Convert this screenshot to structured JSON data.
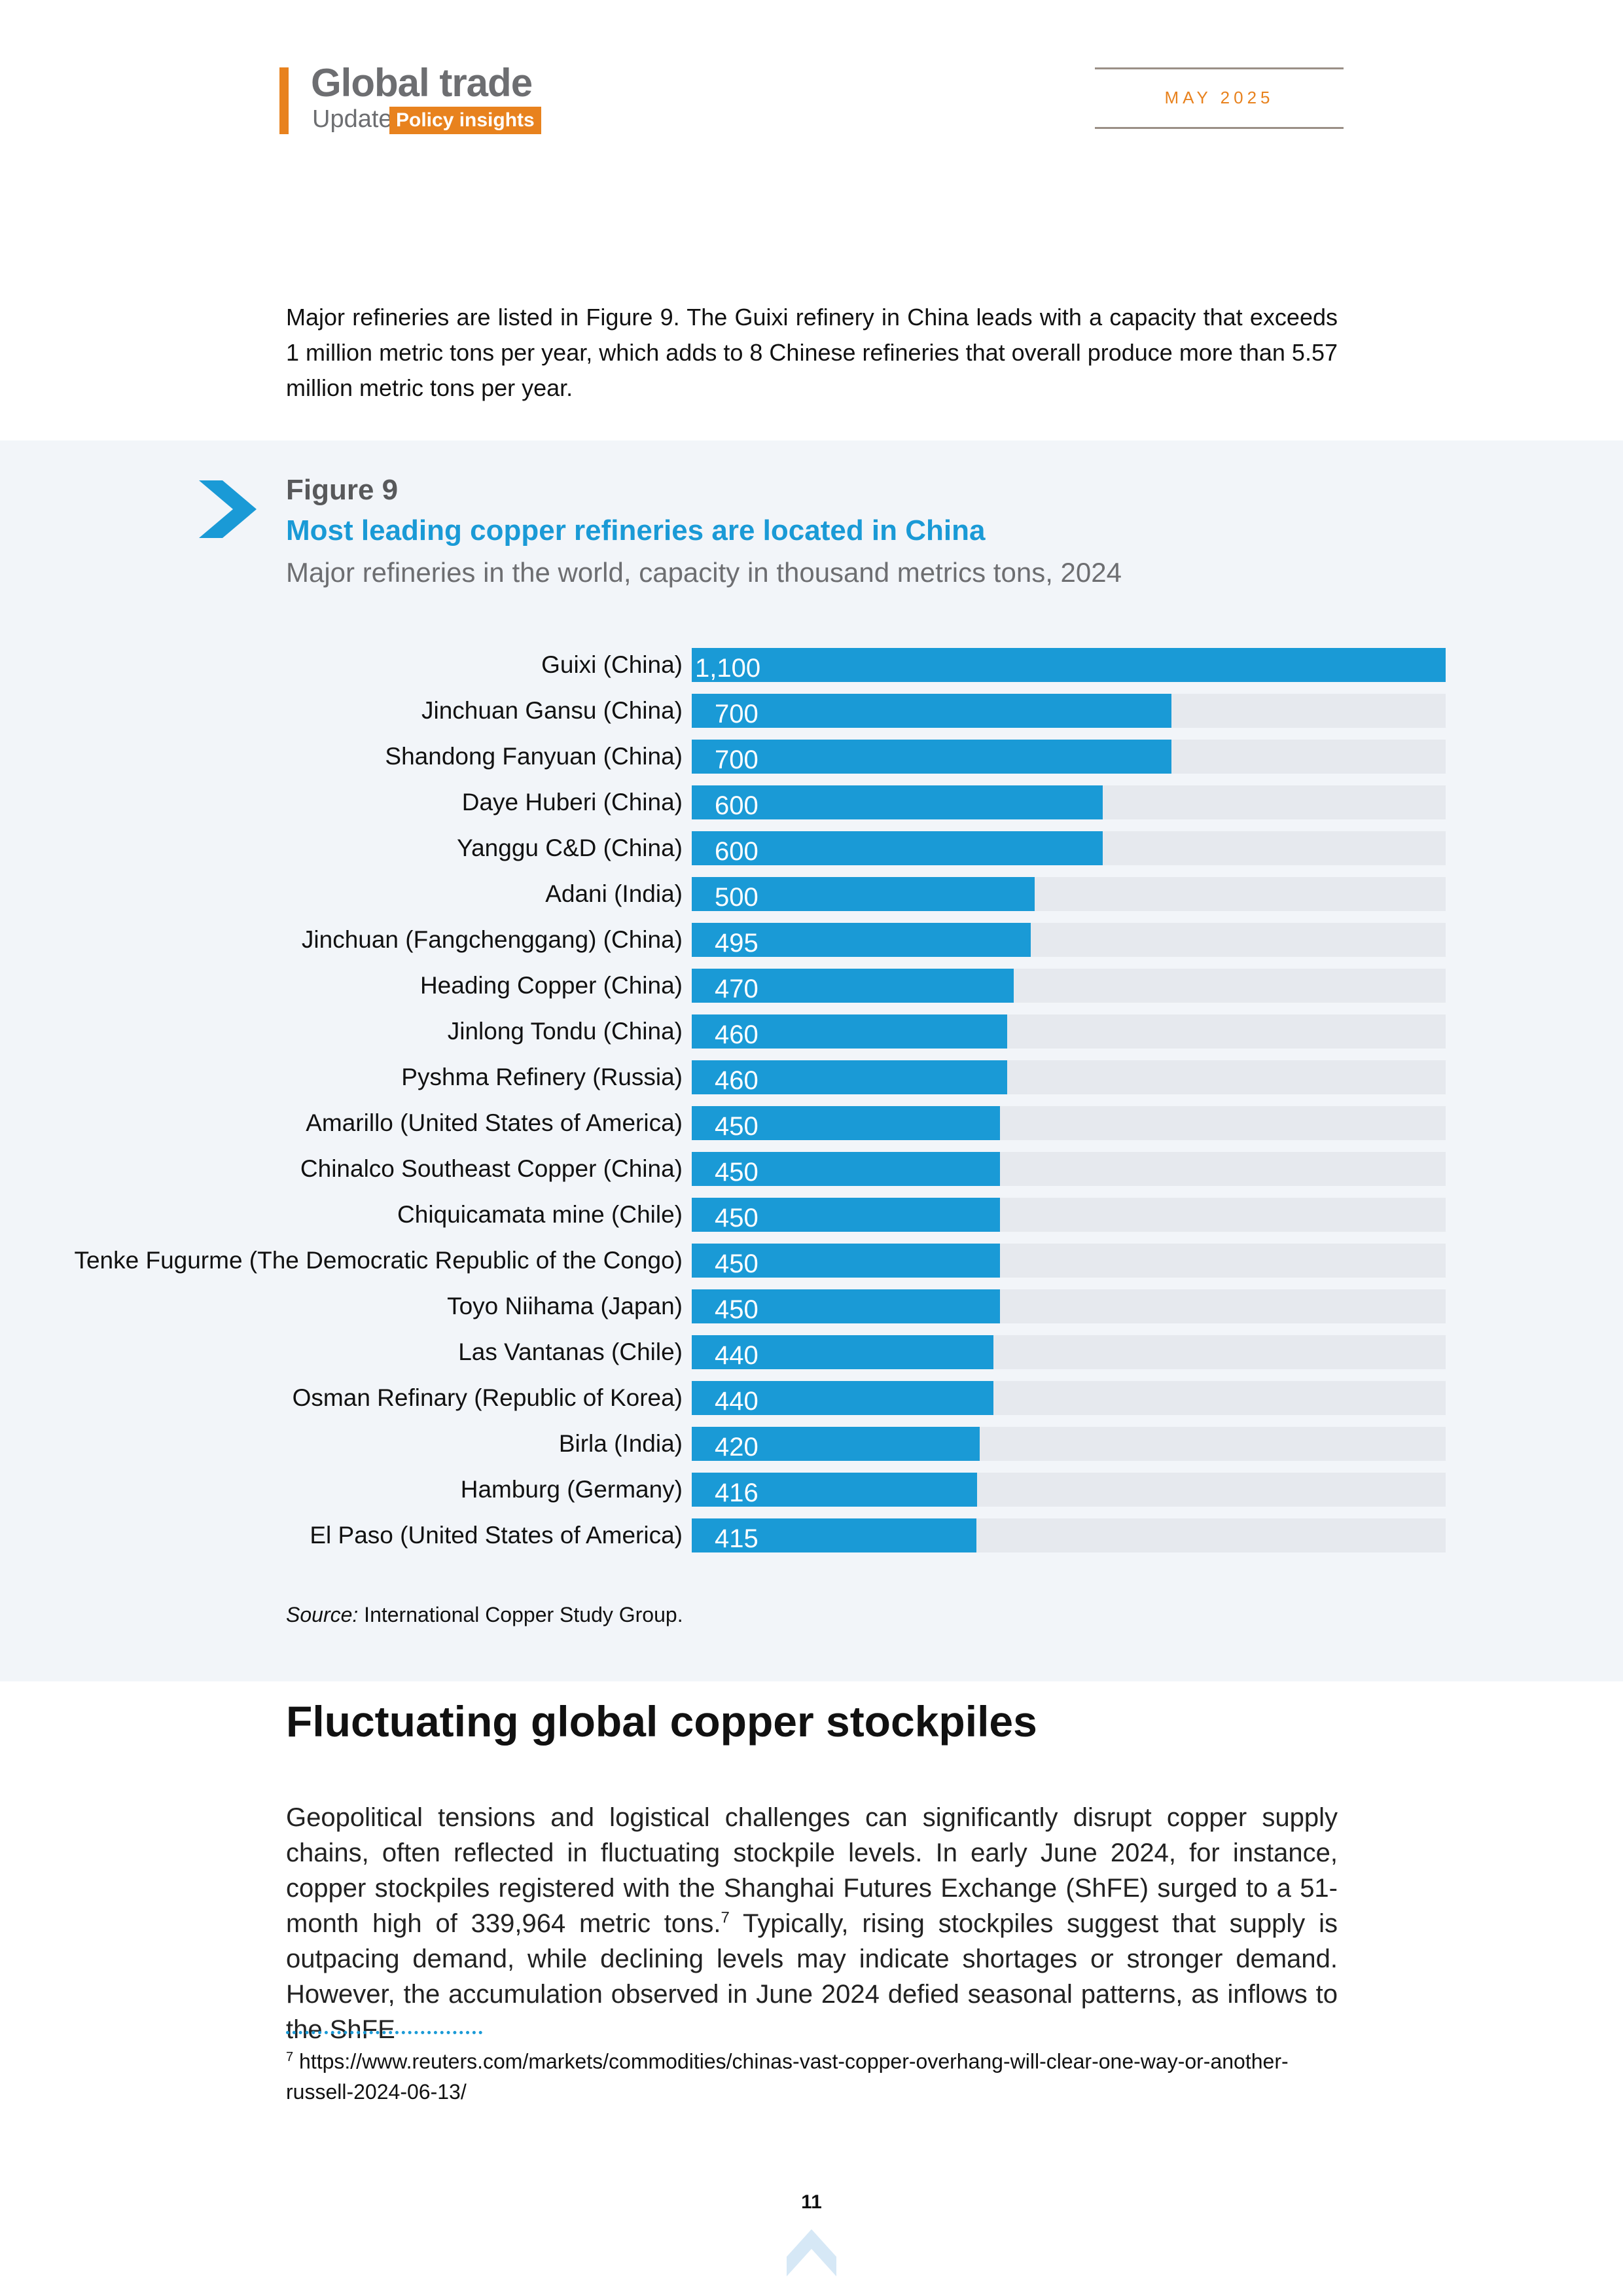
{
  "header": {
    "title": "Global trade",
    "subtitle": "Update",
    "badge": "Policy insights",
    "date": "MAY  2025"
  },
  "intro": "Major refineries are listed in Figure 9. The Guixi refinery in China leads with a capacity that exceeds 1 million metric tons per year, which adds to 8 Chinese refineries that overall produce more than 5.57 million metric tons per year.",
  "figure": {
    "label": "Figure 9",
    "title": "Most leading copper refineries are located in China",
    "subtitle": "Major refineries in the world, capacity in thousand metrics tons, 2024",
    "source_prefix": "Source:",
    "source_text": " International Copper Study Group."
  },
  "chart_data": {
    "type": "bar",
    "orientation": "horizontal",
    "title": "Most leading copper refineries are located in China",
    "subtitle": "Major refineries in the world, capacity in thousand metrics tons, 2024",
    "xlim": [
      0,
      1100
    ],
    "grid": false,
    "categories": [
      "Guixi (China)",
      "Jinchuan Gansu (China)",
      "Shandong Fanyuan (China)",
      "Daye Huberi (China)",
      "Yanggu C&D (China)",
      "Adani (India)",
      "Jinchuan (Fangchenggang) (China)",
      "Heading Copper (China)",
      "Jinlong Tondu (China)",
      "Pyshma Refinery (Russia)",
      "Amarillo (United States of America)",
      "Chinalco Southeast Copper (China)",
      "Chiquicamata mine (Chile)",
      "Tenke Fugurme (The Democratic Republic of the Congo)",
      "Toyo Niihama (Japan)",
      "Las Vantanas (Chile)",
      "Osman Refinary (Republic of Korea)",
      "Birla (India)",
      "Hamburg (Germany)",
      "El Paso (United States of America)"
    ],
    "values": [
      1100,
      700,
      700,
      600,
      600,
      500,
      495,
      470,
      460,
      460,
      450,
      450,
      450,
      450,
      450,
      440,
      440,
      420,
      416,
      415
    ],
    "value_labels": [
      "1,100",
      "700",
      "700",
      "600",
      "600",
      "500",
      "495",
      "470",
      "460",
      "460",
      "450",
      "450",
      "450",
      "450",
      "450",
      "440",
      "440",
      "420",
      "416",
      "415"
    ],
    "colors": {
      "bar": "#1a9ad6",
      "track": "#e6e9ee"
    }
  },
  "section": {
    "title": "Fluctuating global copper stockpiles",
    "body_part1": "Geopolitical tensions and logistical challenges can significantly disrupt copper supply chains, often reflected in fluctuating stockpile levels. In early June 2024, for instance, copper stockpiles registered with the Shanghai Futures Exchange (ShFE) surged to a 51-month high of 339,964 metric tons.",
    "footnote_ref": "7",
    "body_part2": " Typically, rising stockpiles suggest that supply is outpacing demand, while declining levels may indicate shortages or stronger demand. However, the accumulation observed in June 2024 defied seasonal patterns, as inflows to the ShFE"
  },
  "footnote": {
    "number": "7",
    "text": "https://www.reuters.com/markets/commodities/chinas-vast-copper-overhang-will-clear-one-way-or-another-russell-2024-06-13/"
  },
  "page_number": "11",
  "colors": {
    "accent_orange": "#e8821e",
    "accent_blue": "#1a9ad6"
  }
}
